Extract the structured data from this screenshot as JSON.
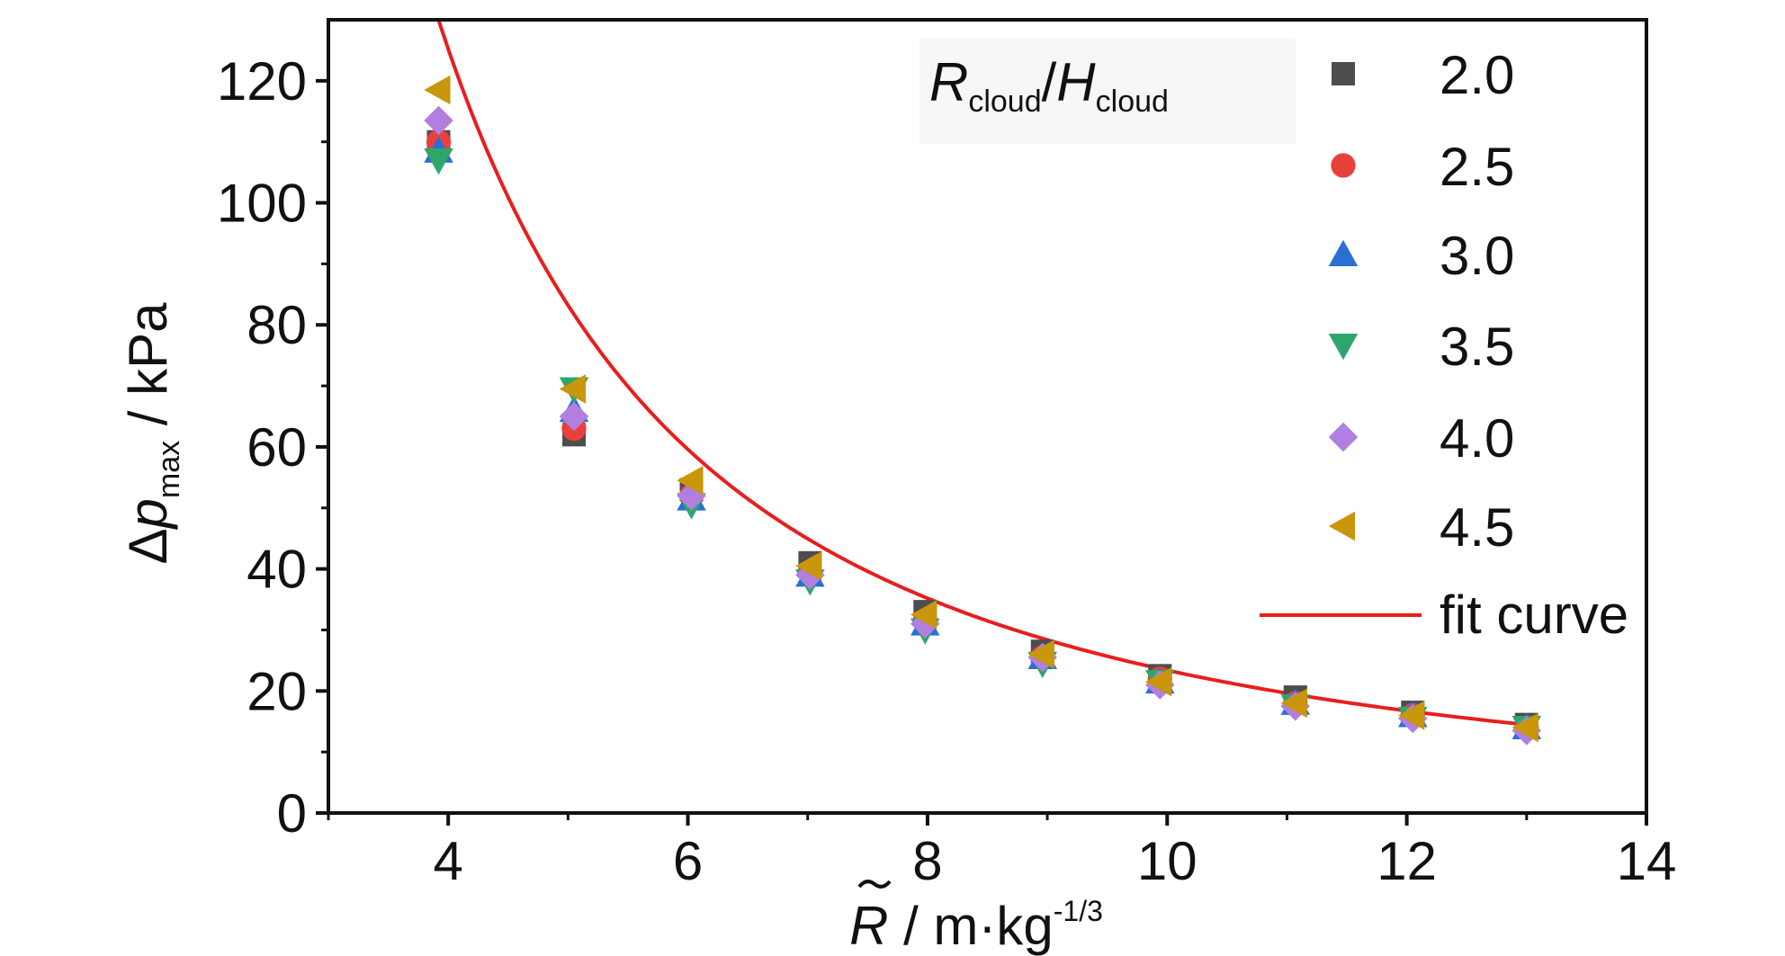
{
  "chart_data": {
    "type": "scatter",
    "xlim": [
      3,
      14
    ],
    "ylim": [
      0,
      130
    ],
    "xticks": [
      4,
      6,
      8,
      10,
      12,
      14
    ],
    "yticks": [
      0,
      20,
      40,
      60,
      80,
      100,
      120
    ],
    "xlabel": {
      "main": "R",
      "unit": " / m·kg",
      "exp": "-1/3"
    },
    "ylabel": {
      "delta": "Δ",
      "p": "p",
      "sub": "max",
      "unit": " / kPa"
    },
    "legend_title": {
      "R": "R",
      "Rsub": "cloud",
      "slash": "/",
      "H": "H",
      "Hsub": "cloud"
    },
    "legend_placement": "top-right",
    "x": [
      3.92,
      5.05,
      6.03,
      7.02,
      7.98,
      8.96,
      9.94,
      11.07,
      12.05,
      13.0
    ],
    "series": [
      {
        "name": "2.0",
        "marker": "square",
        "color": "#4d4d4d",
        "values": [
          110.0,
          62.0,
          53.0,
          41.0,
          33.0,
          26.5,
          22.5,
          19.0,
          16.5,
          14.5
        ]
      },
      {
        "name": "2.5",
        "marker": "circle",
        "color": "#e8413b",
        "values": [
          110.0,
          63.0,
          52.0,
          39.5,
          31.5,
          25.5,
          22.0,
          18.0,
          16.0,
          14.0
        ]
      },
      {
        "name": "3.0",
        "marker": "triangle-up",
        "color": "#2a6fd6",
        "values": [
          108.5,
          66.0,
          51.5,
          39.0,
          31.0,
          25.5,
          21.5,
          18.0,
          16.0,
          14.0
        ]
      },
      {
        "name": "3.5",
        "marker": "triangle-down",
        "color": "#2ea66b",
        "values": [
          107.0,
          69.5,
          50.5,
          38.0,
          30.0,
          24.5,
          21.5,
          17.5,
          15.5,
          14.0
        ]
      },
      {
        "name": "4.0",
        "marker": "diamond",
        "color": "#b27ee0",
        "values": [
          113.5,
          65.0,
          52.0,
          39.0,
          31.0,
          25.5,
          21.0,
          17.5,
          15.5,
          13.5
        ]
      },
      {
        "name": "4.5",
        "marker": "triangle-left",
        "color": "#c9960c",
        "values": [
          118.5,
          69.5,
          54.5,
          40.5,
          32.5,
          26.0,
          21.5,
          18.0,
          16.0,
          14.0
        ]
      }
    ],
    "fit": {
      "name": "fit curve",
      "color": "#e81e1e",
      "x_range": [
        3.92,
        13.0
      ],
      "model": "power",
      "a": 1585,
      "b": -1.831
    }
  }
}
